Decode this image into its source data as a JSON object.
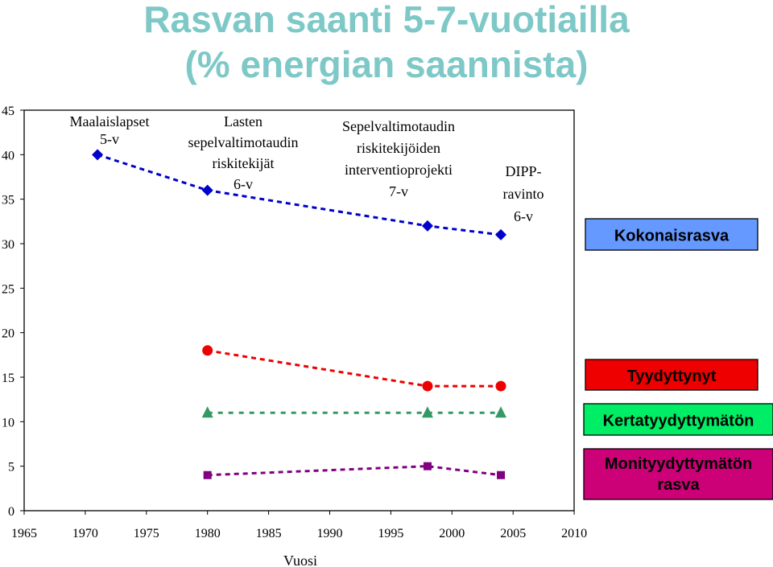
{
  "title_line1": "Rasvan saanti 5-7-vuotiailla",
  "title_line2": "(% energian saannista)",
  "chart_data": {
    "type": "scatter",
    "xlabel": "Vuosi",
    "ylabel": "",
    "xlim": [
      1965,
      2010
    ],
    "ylim": [
      0,
      45
    ],
    "x_ticks": [
      1965,
      1970,
      1975,
      1980,
      1985,
      1990,
      1995,
      2000,
      2005,
      2010
    ],
    "y_ticks": [
      0,
      5,
      10,
      15,
      20,
      25,
      30,
      35,
      40,
      45
    ],
    "grid": false,
    "legend": "right",
    "series": [
      {
        "name": "Kokonaisrasva",
        "color": "#0000cc",
        "marker": "diamond",
        "x": [
          1971,
          1980,
          1998,
          2004
        ],
        "y": [
          40,
          36,
          32,
          31
        ]
      },
      {
        "name": "Tyydyttynyt",
        "color": "#ee0000",
        "marker": "circle",
        "x": [
          1980,
          1998,
          2004
        ],
        "y": [
          18,
          14,
          14
        ]
      },
      {
        "name": "Kertatyydyttymätön",
        "color": "#339966",
        "marker": "triangle",
        "x": [
          1980,
          1998,
          2004
        ],
        "y": [
          11,
          11,
          11
        ]
      },
      {
        "name": "Monityydyttymätön rasva",
        "color": "#800080",
        "marker": "square",
        "x": [
          1980,
          1998,
          2004
        ],
        "y": [
          4,
          5,
          4
        ]
      }
    ],
    "annotations": [
      {
        "id": "maalais",
        "lines": [
          "Maalaislapset",
          "5-v"
        ]
      },
      {
        "id": "lasten",
        "lines": [
          "Lasten",
          "sepelvaltimotaudin",
          "riskitekijät",
          "6-v"
        ]
      },
      {
        "id": "sepel",
        "lines": [
          "Sepelvaltimotaudin",
          "riskitekijöiden",
          "interventioprojekti",
          "7-v"
        ]
      },
      {
        "id": "dipp",
        "lines": [
          "DIPP-",
          "ravinto",
          "6-v"
        ]
      }
    ],
    "legend_boxes": [
      {
        "label_lines": [
          "Kokonaisrasva"
        ],
        "fill": "#6699ff"
      },
      {
        "label_lines": [
          "Tyydyttynyt"
        ],
        "fill": "#ee0000"
      },
      {
        "label_lines": [
          "Kertatyydyttymätön"
        ],
        "fill": "#00ee66"
      },
      {
        "label_lines": [
          "Monityydyttymätön",
          "rasva"
        ],
        "fill": "#cc0077"
      }
    ]
  }
}
